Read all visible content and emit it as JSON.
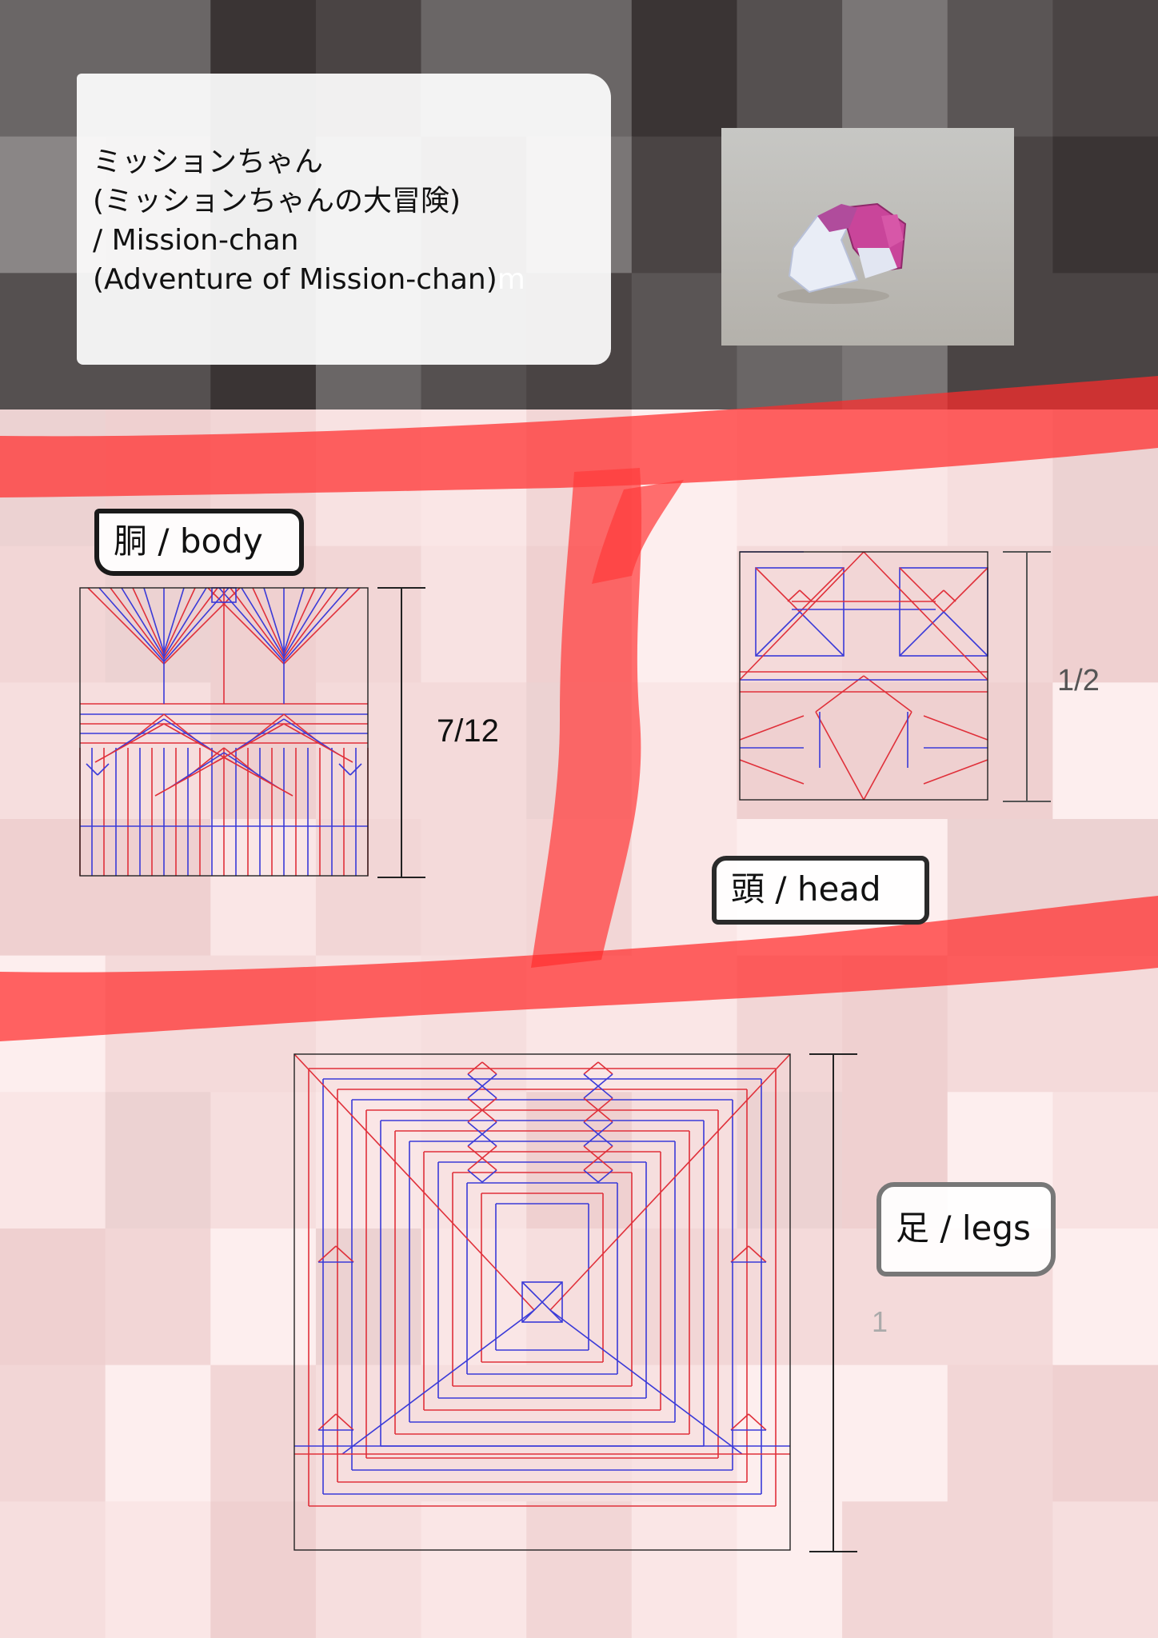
{
  "title": {
    "line1": "ミッションちゃん",
    "line2": "(ミッションちゃんの大冒険)",
    "line3": "/ Mission-chan",
    "line4": "(Adventure of Mission-chan)",
    "line4_tail": "m"
  },
  "sections": {
    "body": {
      "label": "胴 / body",
      "ratio": "7/12"
    },
    "head": {
      "label": "頭 / head",
      "ratio": "1/2"
    },
    "legs": {
      "label": "足 / legs",
      "ratio": "1"
    }
  },
  "colors": {
    "mountain_fold": "#e0303a",
    "valley_fold": "#3a3ad8",
    "outline": "#222222",
    "highlight_red": "#ff3030"
  },
  "photo": {
    "icon": "origami-model-photo"
  }
}
